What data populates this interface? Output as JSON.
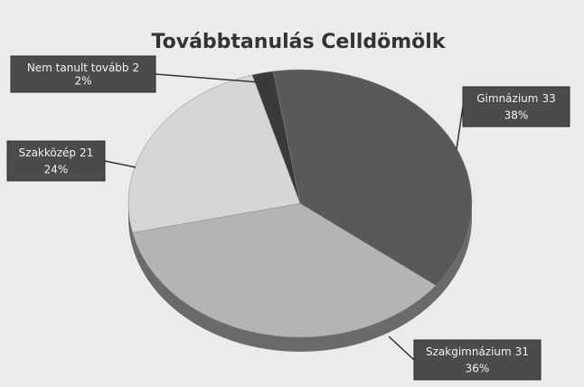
{
  "chart_data": {
    "type": "pie",
    "title": "Továbbtanulás Celldömölk",
    "categories": [
      "Gimnázium",
      "Szakgimnázium",
      "Szakközép",
      "Nem tanult tovább"
    ],
    "counts": [
      33,
      31,
      21,
      2
    ],
    "values": [
      38,
      36,
      24,
      2
    ],
    "value_labels": [
      "38%",
      "36%",
      "24%",
      "2%"
    ],
    "colors": [
      "#595959",
      "#b4b4b4",
      "#d6d6d6",
      "#3a3a3a"
    ]
  }
}
